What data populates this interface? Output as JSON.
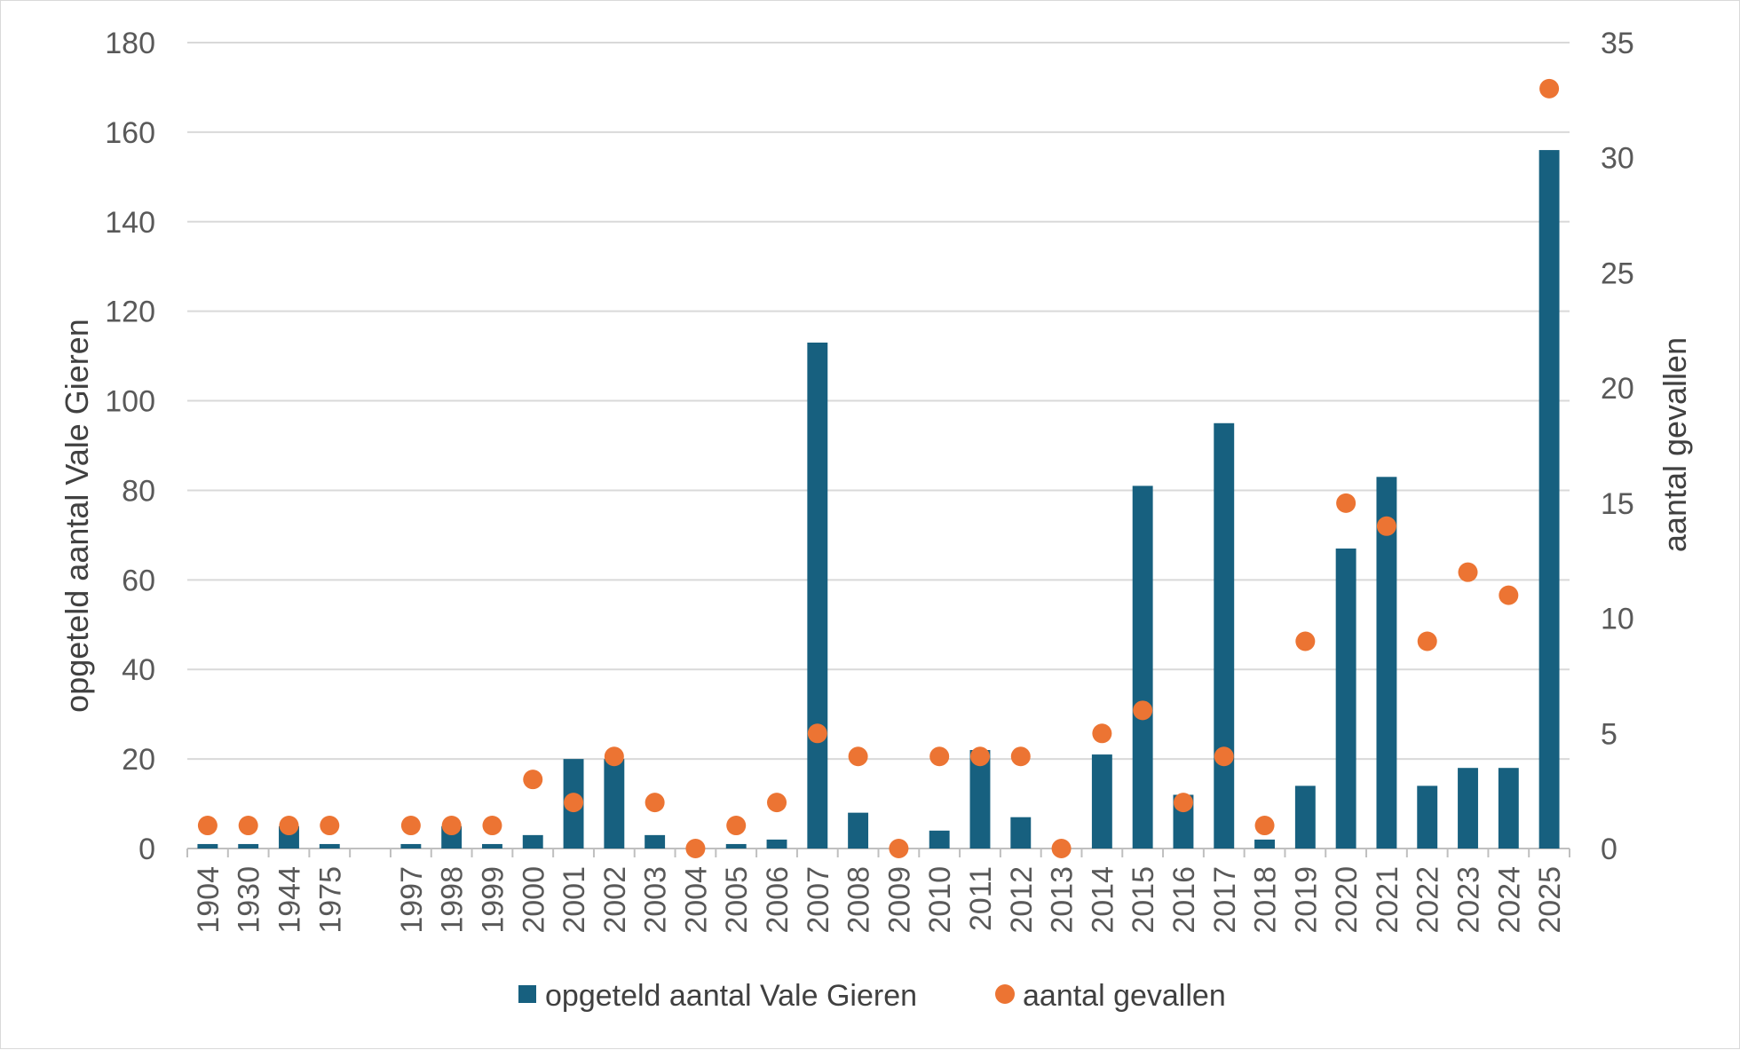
{
  "chart_data": {
    "type": "bar",
    "categories": [
      "1904",
      "1930",
      "1944",
      "1975",
      "",
      "1997",
      "1998",
      "1999",
      "2000",
      "2001",
      "2002",
      "2003",
      "2004",
      "2005",
      "2006",
      "2007",
      "2008",
      "2009",
      "2010",
      "2011",
      "2012",
      "2013",
      "2014",
      "2015",
      "2016",
      "2017",
      "2018",
      "2019",
      "2020",
      "2021",
      "2022",
      "2023",
      "2024",
      "2025"
    ],
    "series": [
      {
        "name": "opgeteld aantal Vale Gieren",
        "type": "bar",
        "axis": "left",
        "color": "#17607f",
        "values": [
          1,
          1,
          5,
          1,
          null,
          1,
          5,
          1,
          3,
          20,
          20,
          3,
          0,
          1,
          2,
          113,
          8,
          0,
          4,
          22,
          7,
          0,
          21,
          81,
          12,
          95,
          2,
          14,
          67,
          83,
          14,
          18,
          18,
          156
        ]
      },
      {
        "name": "aantal gevallen",
        "type": "scatter",
        "axis": "right",
        "color": "#ec7433",
        "values": [
          1,
          1,
          1,
          1,
          null,
          1,
          1,
          1,
          3,
          2,
          4,
          2,
          0,
          1,
          2,
          5,
          4,
          0,
          4,
          4,
          4,
          0,
          5,
          6,
          2,
          4,
          1,
          9,
          15,
          14,
          9,
          12,
          11,
          33
        ]
      }
    ],
    "title": "",
    "xlabel": "",
    "ylabel": "opgeteld aantal Vale Gieren",
    "y2label": "aantal gevallen",
    "ylim": [
      0,
      180
    ],
    "y2lim": [
      0,
      35
    ],
    "yticks": [
      "0",
      "20",
      "40",
      "60",
      "80",
      "100",
      "120",
      "140",
      "160",
      "180"
    ],
    "y2ticks": [
      "0",
      "5",
      "10",
      "15",
      "20",
      "25",
      "30",
      "35"
    ],
    "grid": "horizontal",
    "legend": "bottom"
  }
}
